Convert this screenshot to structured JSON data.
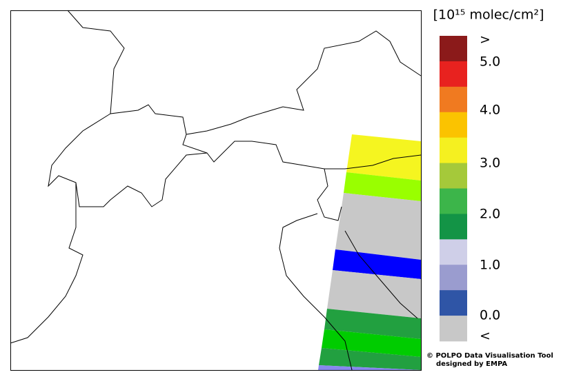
{
  "legend": {
    "title": "[10¹⁵ molec/cm²]",
    "colors": [
      "#8b1a1a",
      "#e8221f",
      "#f07a20",
      "#fbc300",
      "#f5f020",
      "#a5c93a",
      "#3cb54a",
      "#139446",
      "#cfcfe8",
      "#9a9ccf",
      "#2f55a6",
      "#c8c8c8"
    ],
    "labels": [
      ">",
      "5.0",
      "4.0",
      "3.0",
      "2.0",
      "1.0",
      "0.0",
      "<"
    ]
  },
  "credit": {
    "line1": "© POLPO Data Visualisation Tool",
    "line2": "designed by EMPA"
  }
}
